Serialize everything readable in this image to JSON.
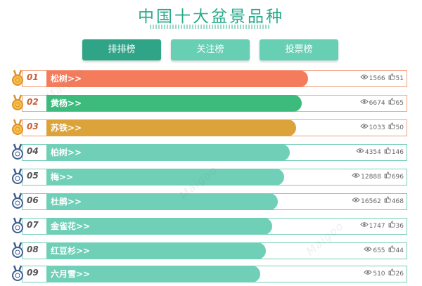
{
  "page": {
    "title": "中国十大盆景品种"
  },
  "tabs": [
    {
      "label": "排排榜",
      "active": true
    },
    {
      "label": "关注榜",
      "active": false
    },
    {
      "label": "投票榜",
      "active": false
    }
  ],
  "colors": {
    "accent": "#2fa487",
    "bar_default": "#6fcfb7",
    "bar_1": "#f47c5c",
    "bar_2": "#3cbb7d",
    "bar_3": "#dba33a",
    "frame_top": "#f1a07d",
    "frame_default": "#78cdb8"
  },
  "items": [
    {
      "rank": "01",
      "name": "松树>>",
      "views": "1566",
      "likes": "51",
      "bar_fraction": 0.72,
      "medal": "gold"
    },
    {
      "rank": "02",
      "name": "黄杨>>",
      "views": "6674",
      "likes": "65",
      "bar_fraction": 0.705,
      "medal": "gold"
    },
    {
      "rank": "03",
      "name": "苏铁>>",
      "views": "1033",
      "likes": "50",
      "bar_fraction": 0.69,
      "medal": "gold"
    },
    {
      "rank": "04",
      "name": "柏树>>",
      "views": "4354",
      "likes": "146",
      "bar_fraction": 0.675,
      "medal": "blue"
    },
    {
      "rank": "05",
      "name": "梅>>",
      "views": "12888",
      "likes": "696",
      "bar_fraction": 0.66,
      "medal": "blue"
    },
    {
      "rank": "06",
      "name": "杜鹃>>",
      "views": "16562",
      "likes": "468",
      "bar_fraction": 0.645,
      "medal": "blue"
    },
    {
      "rank": "07",
      "name": "金雀花>>",
      "views": "1747",
      "likes": "36",
      "bar_fraction": 0.63,
      "medal": "blue"
    },
    {
      "rank": "08",
      "name": "红豆杉>>",
      "views": "655",
      "likes": "44",
      "bar_fraction": 0.615,
      "medal": "blue"
    },
    {
      "rank": "09",
      "name": "六月雪>>",
      "views": "510",
      "likes": "26",
      "bar_fraction": 0.6,
      "medal": "blue"
    }
  ],
  "icons": {
    "views": "eye-icon",
    "likes": "thumbs-up-icon",
    "medal": "medal-icon"
  }
}
